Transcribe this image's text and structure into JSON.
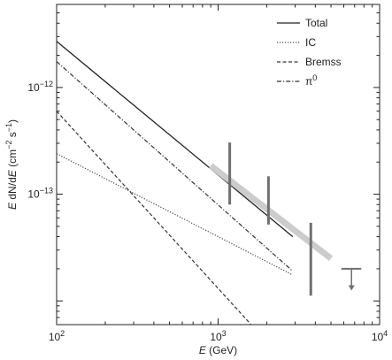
{
  "chart_data": {
    "type": "line",
    "x_scale": "log",
    "y_scale": "log",
    "xlim": [
      100,
      10000
    ],
    "ylim": [
      6e-15,
      6e-12
    ],
    "xlabel": {
      "var": "E",
      "unit": "(GeV)"
    },
    "ylabel": {
      "var1": "E",
      "mid": "dN",
      "slash": "/d",
      "var2": "E",
      "units": "(cm",
      "exp1": "−2",
      "s": " s",
      "exp2": "−1",
      "close": ")"
    },
    "x_ticks": [
      {
        "value": 100,
        "base": "10",
        "exp": "2"
      },
      {
        "value": 1000,
        "base": "10",
        "exp": "3"
      },
      {
        "value": 10000,
        "base": "10",
        "exp": "4"
      }
    ],
    "y_ticks": [
      {
        "value": 1e-12,
        "base": "10",
        "exp": "−12"
      },
      {
        "value": 1e-13,
        "base": "10",
        "exp": "−13"
      }
    ],
    "series": [
      {
        "name": "Total",
        "style": "solid",
        "color": "#222222",
        "x": [
          100,
          2900
        ],
        "y": [
          2.7e-12,
          4e-14
        ]
      },
      {
        "name": "IC",
        "style": "dotted",
        "color": "#444444",
        "x": [
          100,
          2900
        ],
        "y": [
          2.4e-13,
          1.75e-14
        ]
      },
      {
        "name": "Bremss",
        "style": "dashed",
        "color": "#333333",
        "x": [
          100,
          1600
        ],
        "y": [
          6e-13,
          6e-15
        ]
      },
      {
        "name": "π",
        "superscript": "0",
        "style": "dashdot",
        "color": "#333333",
        "x": [
          100,
          2900
        ],
        "y": [
          1.75e-12,
          1.9e-14
        ]
      }
    ],
    "observed_band": {
      "color": "#cccccc",
      "x": [
        900,
        5000
      ],
      "y": [
        1.85e-13,
        2.5e-14
      ]
    },
    "error_bars": [
      {
        "x": 1180,
        "ymin": 8e-14,
        "ymax": 3.05e-13
      },
      {
        "x": 2050,
        "ymin": 5.2e-14,
        "ymax": 1.47e-13
      },
      {
        "x": 3750,
        "ymin": 1.12e-14,
        "ymax": 5.4e-14
      }
    ],
    "upper_limit": {
      "x": 6700,
      "x_span": [
        5800,
        7700
      ],
      "y": 2e-14,
      "y_arrow_tip": 1.25e-14
    },
    "legend": {
      "position": "top-right"
    }
  }
}
